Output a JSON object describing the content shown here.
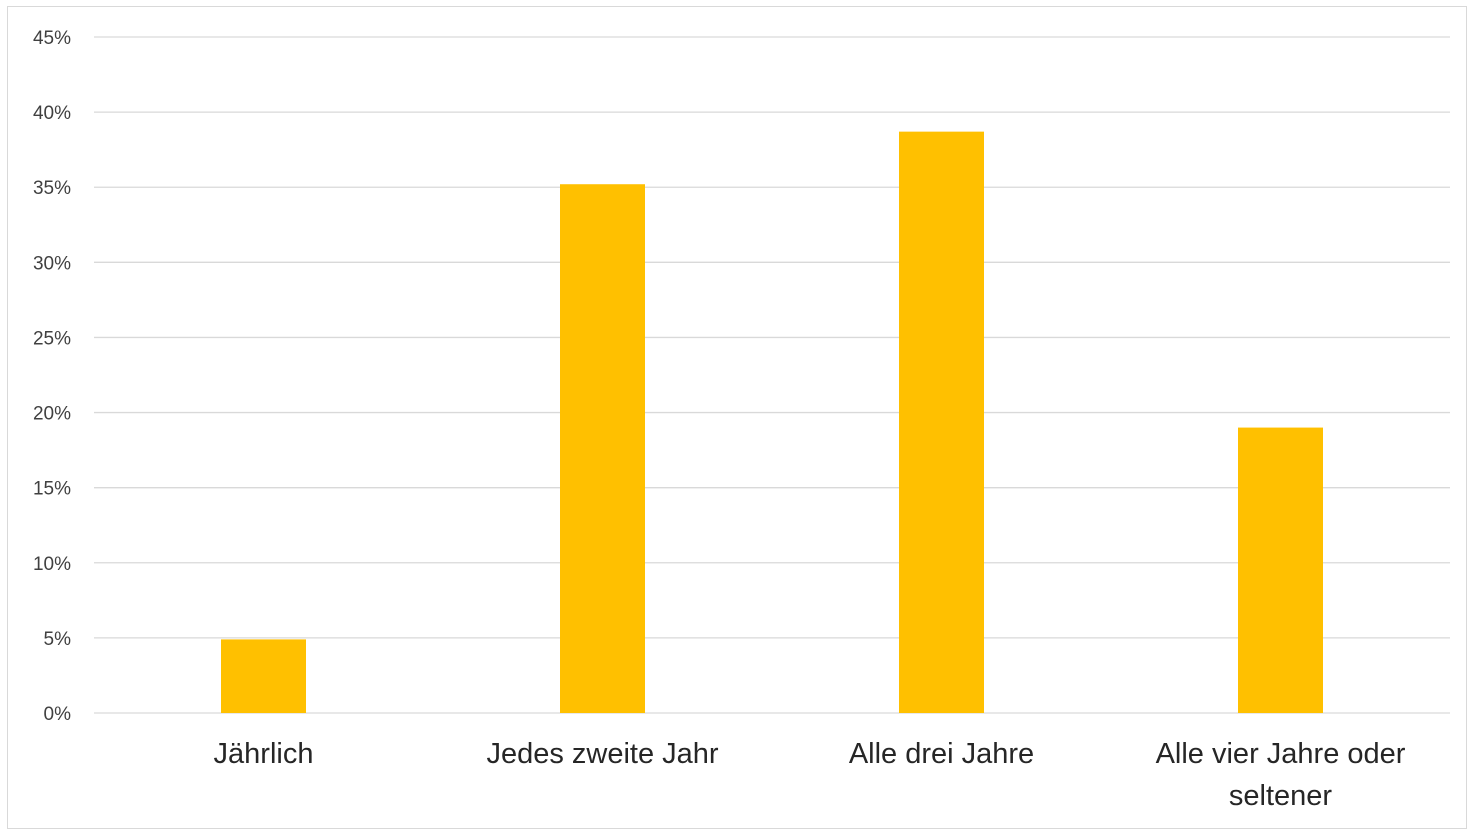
{
  "chart_data": {
    "type": "bar",
    "title": "",
    "xlabel": "",
    "ylabel": "",
    "categories": [
      [
        "Jährlich"
      ],
      [
        "Jedes zweite Jahr"
      ],
      [
        "Alle drei Jahre"
      ],
      [
        "Alle vier Jahre oder",
        "seltener"
      ]
    ],
    "values": [
      0.049,
      0.352,
      0.387,
      0.19
    ],
    "ylim": [
      0,
      0.45
    ],
    "yticks": [
      0,
      0.05,
      0.1,
      0.15,
      0.2,
      0.25,
      0.3,
      0.35,
      0.4,
      0.45
    ],
    "ytick_labels": [
      "0%",
      "5%",
      "10%",
      "15%",
      "20%",
      "25%",
      "30%",
      "35%",
      "40%",
      "45%"
    ],
    "grid": true,
    "legend": "none",
    "colors": {
      "bar": "#FFC000",
      "grid": "#d9d9d9",
      "axis": "#d9d9d9"
    }
  }
}
